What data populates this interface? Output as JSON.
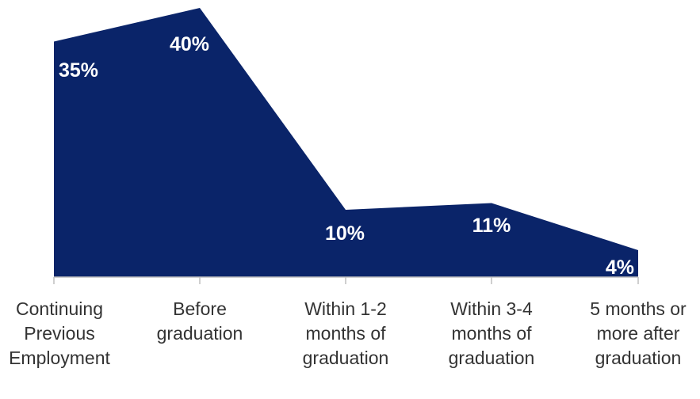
{
  "chart_data": {
    "type": "area",
    "categories": [
      "Continuing\nPrevious\nEmployment",
      "Before\ngraduation",
      "Within 1-2\nmonths of\ngraduation",
      "Within 3-4\nmonths of\ngraduation",
      "5 months or\nmore after\ngraduation"
    ],
    "values": [
      35,
      40,
      10,
      11,
      4
    ],
    "data_labels": [
      "35%",
      "40%",
      "10%",
      "11%",
      "4%"
    ],
    "title": "",
    "xlabel": "",
    "ylabel": "",
    "ylim": [
      0,
      40
    ],
    "grid": false,
    "legend": "none",
    "fill_color": "#0a2469",
    "axis_color": "#bfbfbf"
  }
}
